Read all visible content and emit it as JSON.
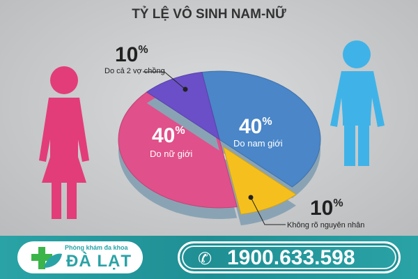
{
  "title": "TỶ LỆ VÔ SINH NAM-NỮ",
  "chart_data": {
    "type": "pie",
    "title": "TỶ LỆ VÔ SINH NAM-NỮ",
    "slices": [
      {
        "label": "Do nam giới",
        "value": 40,
        "display": "40%",
        "color": "#4a86c8"
      },
      {
        "label": "Không rõ nguyên nhân",
        "value": 10,
        "display": "10%",
        "color": "#f5c01e"
      },
      {
        "label": "Do nữ giới",
        "value": 40,
        "display": "40%",
        "color": "#e0508a"
      },
      {
        "label": "Do cả 2 vợ chồng",
        "value": 10,
        "display": "10%",
        "color": "#6a4fc8"
      }
    ]
  },
  "footer": {
    "clinic_small": "Phòng khám đa khoa",
    "clinic_name": "ĐÀ LẠT",
    "phone": "1900.633.598",
    "brand_color": "#2aa3a6"
  }
}
